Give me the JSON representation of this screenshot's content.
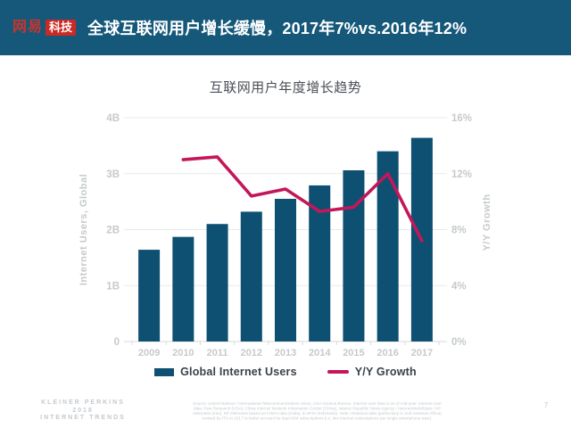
{
  "banner": {
    "logo_part1": "网易",
    "logo_part2": "科技",
    "title": "全球互联网用户增长缓慢，2017年7%vs.2016年12%"
  },
  "chart": {
    "title": "互联网用户年度增长趋势"
  },
  "chart_data": {
    "type": "bar",
    "subtype": "bar+line combo, dual axis",
    "title": "互联网用户年度增长趋势",
    "categories": [
      "2009",
      "2010",
      "2011",
      "2012",
      "2013",
      "2014",
      "2015",
      "2016",
      "2017"
    ],
    "series": [
      {
        "name": "Global Internet Users",
        "type": "bar",
        "axis": "left",
        "unit": "B",
        "color": "#0d5072",
        "values": [
          1.64,
          1.87,
          2.1,
          2.32,
          2.55,
          2.79,
          3.06,
          3.4,
          3.64
        ]
      },
      {
        "name": "Y/Y Growth",
        "type": "line",
        "axis": "right",
        "unit": "%",
        "color": "#c4175a",
        "values": [
          null,
          13,
          13.2,
          10.4,
          10.9,
          9.3,
          9.6,
          12,
          7.2
        ]
      }
    ],
    "left_axis": {
      "label": "Internet Users, Global",
      "min": 0,
      "max": 4,
      "ticks": [
        "0",
        "1B",
        "2B",
        "3B",
        "4B"
      ]
    },
    "right_axis": {
      "label": "Y/Y Growth",
      "min": 0,
      "max": 16,
      "ticks": [
        "0%",
        "4%",
        "8%",
        "12%",
        "16%"
      ]
    },
    "grid": "horizontal only",
    "legend_position": "bottom center"
  },
  "footer": {
    "brand_lines": [
      "KLEINER PERKINS",
      "2018",
      "INTERNET TRENDS"
    ],
    "source_lines": [
      "Source: United Nations / International Telecommunications Union, USA Census Bureau. Internet user data is as of mid-year. Internet user",
      "data: Pew Research (USA), China Internet Network Information Center (China), Islamic Republic News Agency / InternetWorldStats / KP",
      "estimates (Iran), KP estimates based on IAMAI data (India), & APJII (Indonesia). Note: Historical data (particularly in Sub-Saharan Africa)",
      "revised by ITU in 2017 to better account for dual-SIM subscriptions (i.e. two Internet subscriptions per single smartphone user)."
    ],
    "page_number": "7"
  },
  "colors": {
    "banner_bg": "#15587a",
    "logo_red": "#cb2a22",
    "logo_name_red": "#c8352c",
    "bar": "#0d5072",
    "line": "#c4175a",
    "chart_title": "#4a4f57",
    "legend_text": "#3a4049",
    "axis_text": "#c6cacd",
    "gridline": "#e9eaeb",
    "baseline": "#d7d9db",
    "footer_text": "#c5c9ce"
  }
}
